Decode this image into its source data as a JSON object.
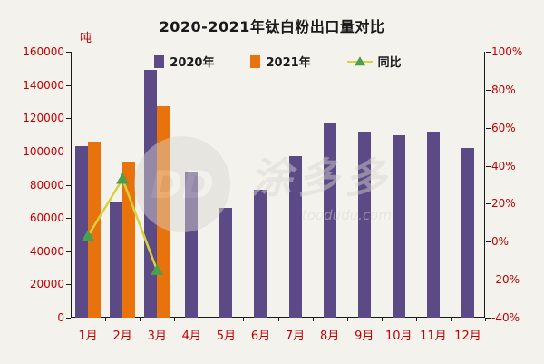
{
  "title": "2020-2021年钛白粉出口量对比",
  "unit_label": "吨",
  "watermark": {
    "logo": "DD",
    "name": "涂多多",
    "domain": "toodudu.com"
  },
  "chart_data": {
    "type": "bar",
    "title": "2020-2021年钛白粉出口量对比",
    "categories": [
      "1月",
      "2月",
      "3月",
      "4月",
      "5月",
      "6月",
      "7月",
      "8月",
      "9月",
      "10月",
      "11月",
      "12月"
    ],
    "series": [
      {
        "name": "2020年",
        "type": "bar",
        "axis": "left",
        "color": "#5b4a86",
        "values": [
          103000,
          70000,
          149000,
          88000,
          66000,
          77000,
          97000,
          117000,
          112000,
          110000,
          112000,
          102000
        ]
      },
      {
        "name": "2021年",
        "type": "bar",
        "axis": "left",
        "color": "#e8720c",
        "values": [
          106000,
          94000,
          127000,
          null,
          null,
          null,
          null,
          null,
          null,
          null,
          null,
          null
        ]
      },
      {
        "name": "同比",
        "type": "line",
        "axis": "right",
        "color": "#d6d23b",
        "marker_color": "#4ba04b",
        "values": [
          3,
          33,
          -15,
          null,
          null,
          null,
          null,
          null,
          null,
          null,
          null,
          null
        ]
      }
    ],
    "left_axis": {
      "min": 0,
      "max": 160000,
      "step": 20000,
      "unit": "吨"
    },
    "right_axis": {
      "min": -40,
      "max": 100,
      "step": 20,
      "suffix": "%"
    },
    "grid": false,
    "legend_position": "top-center"
  }
}
